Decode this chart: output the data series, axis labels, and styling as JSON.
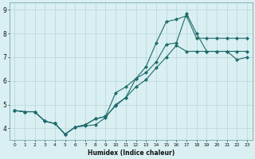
{
  "xlabel": "Humidex (Indice chaleur)",
  "background_color": "#d9eff2",
  "grid_color": "#b8d4d8",
  "line_color": "#1e6b6b",
  "xlim": [
    -0.5,
    23.5
  ],
  "ylim": [
    3.5,
    9.3
  ],
  "xticks": [
    0,
    1,
    2,
    3,
    4,
    5,
    6,
    7,
    8,
    9,
    10,
    11,
    12,
    13,
    14,
    15,
    16,
    17,
    18,
    19,
    20,
    21,
    22,
    23
  ],
  "yticks": [
    4,
    5,
    6,
    7,
    8,
    9
  ],
  "line1_x": [
    0,
    1,
    2,
    3,
    4,
    5,
    6,
    7,
    8,
    9,
    10,
    11,
    12,
    13,
    14,
    15,
    16,
    17,
    18,
    19,
    20,
    21,
    22,
    23
  ],
  "line1_y": [
    4.75,
    4.7,
    4.7,
    4.3,
    4.2,
    3.75,
    4.05,
    4.1,
    4.15,
    4.45,
    5.0,
    5.3,
    5.75,
    6.05,
    6.55,
    7.0,
    7.5,
    7.25,
    7.25,
    7.25,
    7.25,
    7.25,
    6.9,
    7.0
  ],
  "line2_x": [
    0,
    1,
    2,
    3,
    4,
    5,
    6,
    7,
    8,
    9,
    10,
    11,
    12,
    13,
    14,
    15,
    16,
    17,
    18,
    19,
    20,
    21,
    22,
    23
  ],
  "line2_y": [
    4.75,
    4.7,
    4.7,
    4.3,
    4.2,
    3.75,
    4.05,
    4.15,
    4.4,
    4.5,
    5.5,
    5.75,
    6.1,
    6.6,
    7.6,
    8.5,
    8.6,
    8.75,
    7.8,
    7.8,
    7.8,
    7.8,
    7.8,
    7.8
  ],
  "line3_x": [
    0,
    1,
    2,
    3,
    4,
    5,
    6,
    7,
    8,
    9,
    10,
    11,
    12,
    13,
    14,
    15,
    16,
    17,
    18,
    19,
    20,
    21,
    22,
    23
  ],
  "line3_y": [
    4.75,
    4.7,
    4.7,
    4.3,
    4.2,
    3.75,
    4.05,
    4.15,
    4.4,
    4.5,
    4.95,
    5.3,
    6.1,
    6.35,
    6.8,
    7.55,
    7.6,
    8.85,
    8.0,
    7.25,
    7.25,
    7.25,
    7.25,
    7.25
  ]
}
